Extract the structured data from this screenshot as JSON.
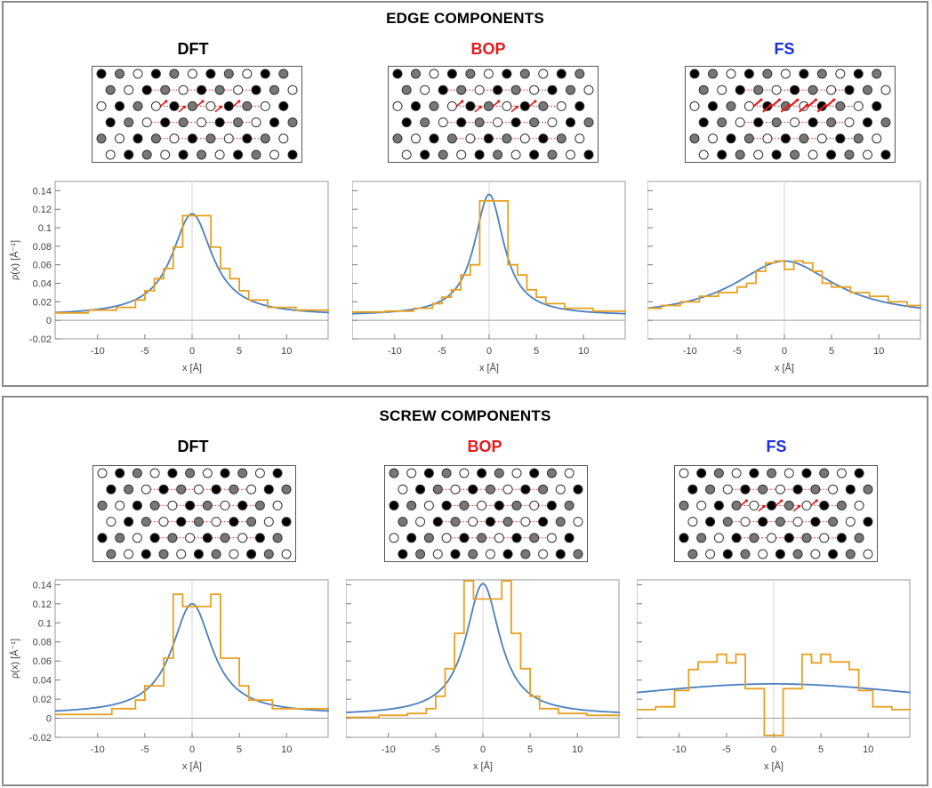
{
  "panels": [
    {
      "id": "edge",
      "title": "EDGE COMPONENTS",
      "methods": [
        {
          "label": "DFT",
          "color": "#000000"
        },
        {
          "label": "BOP",
          "color": "#e8191b"
        },
        {
          "label": "FS",
          "color": "#1a2ee0"
        }
      ]
    },
    {
      "id": "screw",
      "title": "SCREW COMPONENTS",
      "methods": [
        {
          "label": "DFT",
          "color": "#000000"
        },
        {
          "label": "BOP",
          "color": "#e8191b"
        },
        {
          "label": "FS",
          "color": "#1a2ee0"
        }
      ]
    }
  ],
  "colors": {
    "smooth": "#4a7fc1",
    "step": "#e8a020",
    "arrow": "#e8191b"
  },
  "chart_data": [
    {
      "type": "line",
      "panel": "edge",
      "method": "DFT",
      "xlabel": "x [Å]",
      "ylabel": "ρ(x) [Å⁻¹]",
      "xlim": [
        -14.5,
        14.5
      ],
      "ylim": [
        -0.02,
        0.15
      ],
      "xticks": [
        "-10",
        "-5",
        "0",
        "5",
        "10"
      ],
      "yticks": [
        "-0.02",
        "0",
        "0.02",
        "0.04",
        "0.06",
        "0.08",
        "0.1",
        "0.12",
        "0.14"
      ],
      "series": [
        {
          "kind": "smooth",
          "model": "lorentz",
          "peak": 0.115,
          "width": 2.6,
          "base": 0.005
        },
        {
          "kind": "step",
          "x": [
            -14.5,
            -11,
            -8,
            -6,
            -5,
            -4,
            -3,
            -2,
            -1,
            1,
            2,
            3,
            4,
            5,
            6,
            8,
            11,
            14.5
          ],
          "y": [
            0.008,
            0.011,
            0.014,
            0.022,
            0.032,
            0.045,
            0.056,
            0.079,
            0.113,
            0.113,
            0.079,
            0.056,
            0.045,
            0.032,
            0.022,
            0.014,
            0.011,
            0.008
          ]
        }
      ]
    },
    {
      "type": "line",
      "panel": "edge",
      "method": "BOP",
      "xlabel": "x [Å]",
      "ylabel": "",
      "xlim": [
        -14.5,
        14.5
      ],
      "ylim": [
        -0.02,
        0.15
      ],
      "xticks": [
        "-10",
        "-5",
        "0",
        "5",
        "10"
      ],
      "yticks": [],
      "series": [
        {
          "kind": "smooth",
          "model": "lorentz",
          "peak": 0.136,
          "width": 1.9,
          "base": 0.005
        },
        {
          "kind": "step",
          "x": [
            -14.5,
            -11,
            -8,
            -6,
            -5,
            -4,
            -3,
            -2,
            -1,
            1,
            2,
            3,
            4,
            5,
            6,
            8,
            11,
            14.5
          ],
          "y": [
            0.009,
            0.01,
            0.013,
            0.018,
            0.025,
            0.033,
            0.049,
            0.06,
            0.129,
            0.129,
            0.06,
            0.049,
            0.033,
            0.025,
            0.018,
            0.013,
            0.01,
            0.009
          ]
        }
      ]
    },
    {
      "type": "line",
      "panel": "edge",
      "method": "FS",
      "xlabel": "x [Å]",
      "ylabel": "",
      "xlim": [
        -14.5,
        14.5
      ],
      "ylim": [
        -0.02,
        0.15
      ],
      "xticks": [
        "-10",
        "-5",
        "0",
        "5",
        "10"
      ],
      "yticks": [],
      "series": [
        {
          "kind": "smooth",
          "model": "lorentz",
          "peak": 0.064,
          "width": 6.5,
          "base": 0.003
        },
        {
          "kind": "step",
          "x": [
            -14.5,
            -13,
            -11,
            -9,
            -7,
            -5,
            -4,
            -3,
            -2,
            -1,
            0,
            1,
            2,
            3,
            4,
            5,
            7,
            9,
            11,
            13,
            14.5
          ],
          "y": [
            0.013,
            0.016,
            0.02,
            0.026,
            0.03,
            0.036,
            0.04,
            0.053,
            0.062,
            0.064,
            0.055,
            0.064,
            0.062,
            0.053,
            0.04,
            0.036,
            0.03,
            0.026,
            0.02,
            0.016,
            0.013
          ]
        }
      ]
    },
    {
      "type": "line",
      "panel": "screw",
      "method": "DFT",
      "xlabel": "x [Å]",
      "ylabel": "ρ(x) [Å⁻¹]",
      "xlim": [
        -14.5,
        14.5
      ],
      "ylim": [
        -0.02,
        0.145
      ],
      "xticks": [
        "-10",
        "-5",
        "0",
        "5",
        "10"
      ],
      "yticks": [
        "-0.02",
        "0",
        "0.02",
        "0.04",
        "0.06",
        "0.08",
        "0.1",
        "0.12",
        "0.14"
      ],
      "series": [
        {
          "kind": "smooth",
          "model": "lorentz",
          "peak": 0.12,
          "width": 2.6,
          "base": 0.004
        },
        {
          "kind": "step",
          "x": [
            -14.5,
            -8.5,
            -6,
            -5,
            -3,
            -2,
            -1,
            1,
            2,
            3,
            5,
            6,
            8.5,
            14.5
          ],
          "y": [
            0.004,
            0.01,
            0.019,
            0.034,
            0.063,
            0.13,
            0.117,
            0.117,
            0.13,
            0.063,
            0.034,
            0.019,
            0.01,
            0.004
          ]
        }
      ]
    },
    {
      "type": "line",
      "panel": "screw",
      "method": "BOP",
      "xlabel": "x [Å]",
      "ylabel": "",
      "xlim": [
        -14.5,
        14.5
      ],
      "ylim": [
        -0.02,
        0.145
      ],
      "xticks": [
        "-10",
        "-5",
        "0",
        "5",
        "10"
      ],
      "yticks": [],
      "series": [
        {
          "kind": "smooth",
          "model": "lorentz",
          "peak": 0.141,
          "width": 2.2,
          "base": 0.003
        },
        {
          "kind": "step",
          "x": [
            -14.5,
            -11,
            -8,
            -6,
            -5,
            -4,
            -3,
            -2,
            -1,
            1,
            2,
            3,
            4,
            5,
            6,
            8,
            11,
            14.5
          ],
          "y": [
            0.001,
            0.003,
            0.005,
            0.01,
            0.023,
            0.052,
            0.089,
            0.144,
            0.125,
            0.125,
            0.144,
            0.089,
            0.052,
            0.023,
            0.01,
            0.005,
            0.003,
            0.001
          ]
        }
      ]
    },
    {
      "type": "line",
      "panel": "screw",
      "method": "FS",
      "xlabel": "x [Å]",
      "ylabel": "",
      "xlim": [
        -14.5,
        14.5
      ],
      "ylim": [
        -0.02,
        0.145
      ],
      "xticks": [
        "-10",
        "-5",
        "0",
        "5",
        "10"
      ],
      "yticks": [],
      "series": [
        {
          "kind": "smooth",
          "model": "lorentz",
          "peak": 0.036,
          "width": 25,
          "base": 0.0
        },
        {
          "kind": "step",
          "x": [
            -14.5,
            -12.5,
            -10.5,
            -9,
            -8,
            -6,
            -5,
            -4,
            -3,
            -1,
            1,
            3,
            4,
            5,
            6,
            8,
            9,
            10.5,
            12.5,
            14.5
          ],
          "y": [
            0.009,
            0.012,
            0.029,
            0.051,
            0.059,
            0.067,
            0.058,
            0.067,
            0.031,
            -0.018,
            0.031,
            0.067,
            0.058,
            0.067,
            0.059,
            0.051,
            0.029,
            0.012,
            0.009,
            0.009
          ]
        }
      ]
    }
  ]
}
